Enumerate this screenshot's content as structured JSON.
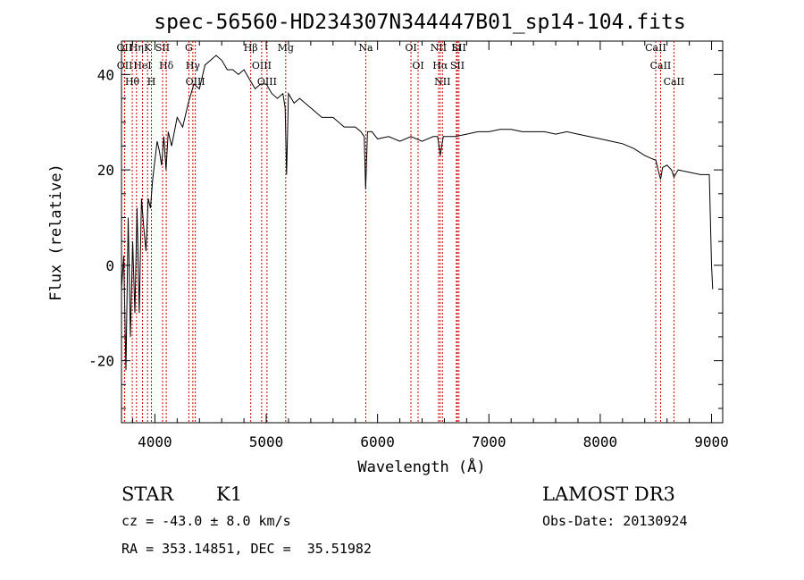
{
  "chart_data": {
    "type": "line",
    "title": "spec-56560-HD234307N344447B01_sp14-104.fits",
    "xlabel": "Wavelength (Å)",
    "ylabel": "Flux (relative)",
    "xlim": [
      3700,
      9100
    ],
    "ylim": [
      -33,
      47
    ],
    "x_ticks": [
      4000,
      5000,
      6000,
      7000,
      8000,
      9000
    ],
    "y_ticks": [
      -20,
      0,
      20,
      40
    ],
    "grid": false,
    "series": [
      {
        "x": [
          3700,
          3720,
          3740,
          3760,
          3780,
          3800,
          3820,
          3840,
          3860,
          3880,
          3900,
          3920,
          3940,
          3960,
          3980,
          4000,
          4020,
          4040,
          4060,
          4080,
          4100,
          4120,
          4150,
          4200,
          4250,
          4300,
          4350,
          4400,
          4450,
          4500,
          4550,
          4600,
          4650,
          4700,
          4750,
          4800,
          4850,
          4900,
          4950,
          5000,
          5050,
          5100,
          5150,
          5170,
          5183,
          5200,
          5250,
          5300,
          5400,
          5500,
          5600,
          5700,
          5800,
          5850,
          5880,
          5893,
          5910,
          5950,
          6000,
          6100,
          6200,
          6300,
          6400,
          6500,
          6540,
          6563,
          6590,
          6650,
          6700,
          6800,
          6900,
          7000,
          7100,
          7200,
          7300,
          7400,
          7500,
          7600,
          7700,
          7800,
          7900,
          8000,
          8100,
          8200,
          8300,
          8400,
          8450,
          8500,
          8520,
          8542,
          8560,
          8600,
          8640,
          8662,
          8700,
          8800,
          8900,
          8950,
          8980,
          9000,
          9010
        ],
        "y": [
          -5,
          2,
          -22,
          10,
          -15,
          5,
          -10,
          12,
          -10,
          14,
          8,
          3,
          14,
          12,
          18,
          22,
          26,
          24,
          21,
          27,
          20,
          28,
          25,
          31,
          29,
          34,
          38,
          37,
          42,
          43,
          44,
          43,
          41,
          41,
          40,
          41,
          39,
          37,
          38,
          38,
          36,
          35,
          36,
          33,
          19,
          36,
          34,
          35,
          33,
          31,
          31,
          29,
          29,
          28,
          27,
          16,
          28,
          28,
          26.5,
          27,
          26,
          27,
          26,
          27,
          27,
          23,
          27,
          27,
          27,
          27.5,
          28,
          28,
          28.5,
          28.5,
          28,
          28,
          28,
          27.5,
          28,
          27.5,
          27,
          26.5,
          26,
          25.5,
          24.5,
          23,
          22.5,
          22,
          20,
          18,
          20.5,
          21,
          20,
          18.5,
          20,
          19.5,
          19,
          19,
          19,
          0,
          -5
        ]
      }
    ],
    "spectral_lines": [
      {
        "name": "Hθ",
        "wavelength": 3797
      },
      {
        "name": "OII",
        "wavelength": 3727
      },
      {
        "name": "OII",
        "wavelength": 3729
      },
      {
        "name": "HeI",
        "wavelength": 3889
      },
      {
        "name": "K",
        "wavelength": 3934
      },
      {
        "name": "Hη",
        "wavelength": 3835
      },
      {
        "name": "SII",
        "wavelength": 4069
      },
      {
        "name": "H",
        "wavelength": 3969
      },
      {
        "name": "Hδ",
        "wavelength": 4102
      },
      {
        "name": "OIII",
        "wavelength": 4363
      },
      {
        "name": "Hγ",
        "wavelength": 4341
      },
      {
        "name": "G",
        "wavelength": 4305
      },
      {
        "name": "OIII",
        "wavelength": 4959
      },
      {
        "name": "OIII",
        "wavelength": 5007
      },
      {
        "name": "Hβ",
        "wavelength": 4861
      },
      {
        "name": "Mg",
        "wavelength": 5175
      },
      {
        "name": "Na",
        "wavelength": 5894
      },
      {
        "name": "OI",
        "wavelength": 6300
      },
      {
        "name": "OI",
        "wavelength": 6364
      },
      {
        "name": "Hα",
        "wavelength": 6563
      },
      {
        "name": "NII",
        "wavelength": 6548
      },
      {
        "name": "NII",
        "wavelength": 6583
      },
      {
        "name": "SII",
        "wavelength": 6717
      },
      {
        "name": "SII",
        "wavelength": 6731
      },
      {
        "name": "Li",
        "wavelength": 6708
      },
      {
        "name": "CaII",
        "wavelength": 8498
      },
      {
        "name": "CaII",
        "wavelength": 8542
      },
      {
        "name": "CaII",
        "wavelength": 8662
      }
    ]
  },
  "info": {
    "class": "STAR",
    "subclass": "K1",
    "survey": "LAMOST DR3",
    "cz": "cz = -43.0 ± 8.0 km/s",
    "obs_date": "Obs-Date: 20130924",
    "coords": "RA = 353.14851, DEC =  35.51982"
  },
  "colors": {
    "line": "#000000",
    "marker": "#cc0000"
  }
}
